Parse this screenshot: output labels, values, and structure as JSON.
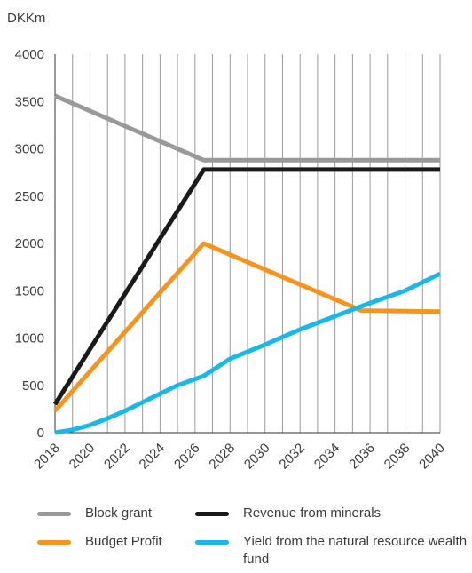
{
  "chart_data": {
    "type": "line",
    "unit_label": "DKKm",
    "x": [
      2018,
      2019,
      2020,
      2021,
      2022,
      2023,
      2024,
      2025,
      2026,
      2027,
      2028,
      2029,
      2030,
      2031,
      2032,
      2033,
      2034,
      2035,
      2036,
      2037,
      2038,
      2039,
      2040
    ],
    "x_tick_labels": [
      "2018",
      "2020",
      "2022",
      "2024",
      "2026",
      "2028",
      "2030",
      "2032",
      "2034",
      "2036",
      "2038",
      "2040"
    ],
    "y_tick_labels": [
      "0",
      "500",
      "1000",
      "1500",
      "2000",
      "2500",
      "3000",
      "3500",
      "4000"
    ],
    "ylim": [
      0,
      4000
    ],
    "xlim": [
      2018,
      2040
    ],
    "grid": "vertical lines at each year",
    "legend_placement": "bottom",
    "series": [
      {
        "name": "Block grant",
        "color": "#999999",
        "points": [
          [
            2018,
            3560
          ],
          [
            2026.5,
            2880
          ],
          [
            2040,
            2880
          ]
        ]
      },
      {
        "name": "Revenue from minerals",
        "color": "#1a1a1a",
        "points": [
          [
            2018,
            300
          ],
          [
            2026.5,
            2780
          ],
          [
            2040,
            2780
          ]
        ]
      },
      {
        "name": "Budget Profit",
        "color": "#f7941d",
        "points": [
          [
            2018,
            230
          ],
          [
            2026.5,
            2000
          ],
          [
            2035.5,
            1290
          ],
          [
            2040,
            1280
          ]
        ]
      },
      {
        "name": "Yield from the natural resource wealth fund",
        "color": "#1ab7ea",
        "points": [
          [
            2018,
            0
          ],
          [
            2019,
            30
          ],
          [
            2020,
            80
          ],
          [
            2021,
            150
          ],
          [
            2022,
            230
          ],
          [
            2023,
            320
          ],
          [
            2024,
            410
          ],
          [
            2025,
            500
          ],
          [
            2026.5,
            600
          ],
          [
            2028,
            780
          ],
          [
            2030,
            930
          ],
          [
            2032,
            1090
          ],
          [
            2034,
            1230
          ],
          [
            2036,
            1370
          ],
          [
            2038,
            1500
          ],
          [
            2040,
            1680
          ]
        ]
      }
    ]
  },
  "legend": {
    "items": [
      {
        "label": "Block grant",
        "color": "#999999"
      },
      {
        "label": "Revenue from minerals",
        "color": "#1a1a1a"
      },
      {
        "label": "Budget Profit",
        "color": "#f7941d"
      },
      {
        "label": "Yield from the natural resource wealth fund",
        "color": "#1ab7ea"
      }
    ]
  }
}
